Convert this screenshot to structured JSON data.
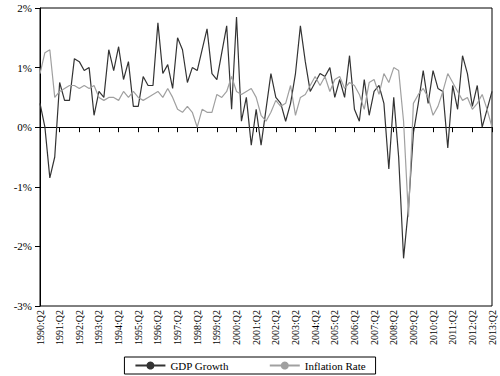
{
  "chart_data": {
    "type": "line",
    "categories": [
      "1990:Q2",
      null,
      null,
      null,
      "1991:Q2",
      null,
      null,
      null,
      "1992:Q2",
      null,
      null,
      null,
      "1993:Q2",
      null,
      null,
      null,
      "1994:Q2",
      null,
      null,
      null,
      "1995:Q2",
      null,
      null,
      null,
      "1996:Q2",
      null,
      null,
      null,
      "1997:Q2",
      null,
      null,
      null,
      "1998:Q2",
      null,
      null,
      null,
      "1999:Q2",
      null,
      null,
      null,
      "2000:Q2",
      null,
      null,
      null,
      "2001:Q2",
      null,
      null,
      null,
      "2002:Q2",
      null,
      null,
      null,
      "2003:Q2",
      null,
      null,
      null,
      "2004:Q2",
      null,
      null,
      null,
      "2005:Q2",
      null,
      null,
      null,
      "2006:Q2",
      null,
      null,
      null,
      "2007:Q2",
      null,
      null,
      null,
      "2008:Q2",
      null,
      null,
      null,
      "2009:Q2",
      null,
      null,
      null,
      "2010:Q2",
      null,
      null,
      null,
      "2011:Q2",
      null,
      null,
      null,
      "2012:Q2",
      null,
      null,
      null,
      "2013:Q2"
    ],
    "series": [
      {
        "name": "GDP Growth",
        "color": "#333333",
        "values": [
          0.4,
          0.0,
          -0.85,
          -0.5,
          0.75,
          0.45,
          0.45,
          1.15,
          1.1,
          0.95,
          1.0,
          0.2,
          0.6,
          0.5,
          1.3,
          0.95,
          1.35,
          0.8,
          1.1,
          0.35,
          0.35,
          0.85,
          0.7,
          0.7,
          1.75,
          0.9,
          1.05,
          0.65,
          1.5,
          1.3,
          0.75,
          1.0,
          0.95,
          1.3,
          1.65,
          0.9,
          0.8,
          1.25,
          1.7,
          0.3,
          1.85,
          0.1,
          0.5,
          -0.3,
          0.3,
          -0.3,
          0.3,
          0.9,
          0.5,
          0.4,
          0.1,
          0.4,
          0.9,
          1.7,
          1.1,
          0.6,
          0.75,
          0.9,
          0.85,
          1.0,
          0.5,
          0.8,
          0.5,
          1.2,
          0.3,
          0.1,
          0.8,
          0.2,
          0.6,
          0.7,
          0.4,
          -0.7,
          0.5,
          -0.5,
          -2.2,
          -1.35,
          -0.1,
          0.4,
          0.95,
          0.4,
          0.95,
          0.65,
          0.6,
          -0.35,
          0.7,
          0.3,
          1.2,
          0.9,
          0.35,
          0.7,
          0.0,
          0.3,
          0.6
        ]
      },
      {
        "name": "Inflation Rate",
        "color": "#a0a0a0",
        "values": [
          0.9,
          1.25,
          1.3,
          0.5,
          0.6,
          0.65,
          0.7,
          0.7,
          0.65,
          0.7,
          0.65,
          0.7,
          0.5,
          0.45,
          0.5,
          0.5,
          0.45,
          0.6,
          0.5,
          0.6,
          0.5,
          0.45,
          0.5,
          0.55,
          0.6,
          0.5,
          0.65,
          0.5,
          0.3,
          0.25,
          0.35,
          0.25,
          0.0,
          0.3,
          0.25,
          0.25,
          0.55,
          0.5,
          0.6,
          0.85,
          0.6,
          0.55,
          0.6,
          0.65,
          0.5,
          0.2,
          0.1,
          0.25,
          0.45,
          0.35,
          0.4,
          0.7,
          0.2,
          0.5,
          0.55,
          0.7,
          0.85,
          0.7,
          0.85,
          0.6,
          0.8,
          0.85,
          0.65,
          0.75,
          0.7,
          0.55,
          0.3,
          0.75,
          0.8,
          0.55,
          0.9,
          0.75,
          1.0,
          0.95,
          0.1,
          -1.5,
          0.4,
          0.55,
          0.65,
          0.5,
          0.2,
          0.35,
          0.6,
          0.9,
          0.75,
          0.6,
          0.45,
          0.5,
          0.3,
          0.4,
          0.55,
          0.3,
          0.0
        ]
      }
    ],
    "ylim": [
      -3,
      2
    ],
    "yticks": [
      {
        "value": -3,
        "label": "-3%"
      },
      {
        "value": -2,
        "label": "-2%"
      },
      {
        "value": -1,
        "label": "-1%"
      },
      {
        "value": 0,
        "label": "0%"
      },
      {
        "value": 1,
        "label": "1%"
      },
      {
        "value": 2,
        "label": "2%"
      }
    ],
    "grid": false,
    "legend": "bottom"
  }
}
